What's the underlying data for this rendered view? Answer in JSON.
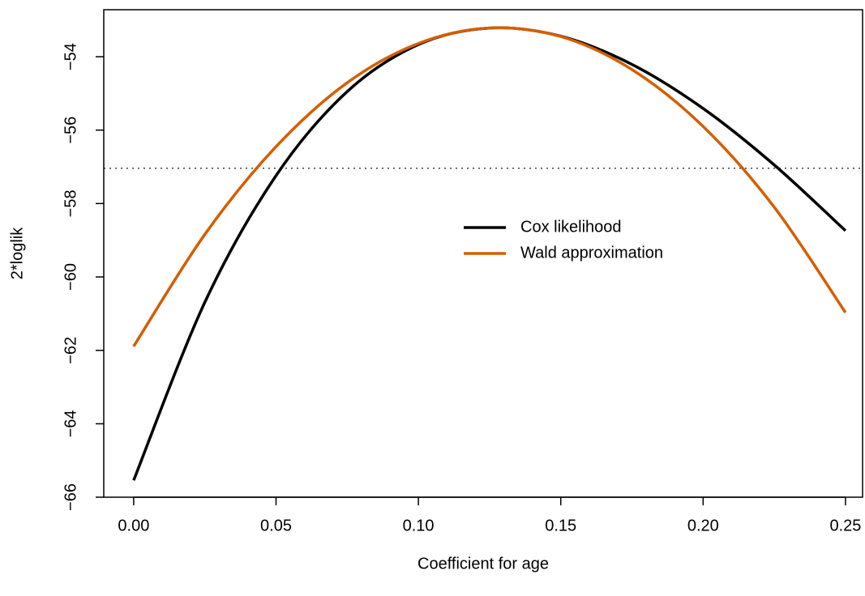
{
  "chart_data": {
    "type": "line",
    "x_label": "Coefficient for age",
    "y_label": "2*loglik",
    "x": [
      0,
      0.025,
      0.05,
      0.075,
      0.1,
      0.125,
      0.15,
      0.175,
      0.2,
      0.225,
      0.25
    ],
    "series": [
      {
        "name": "Cox likelihood",
        "color": "#000000",
        "values": [
          -65.54,
          -60.69,
          -57.24,
          -54.95,
          -53.67,
          -53.22,
          -53.44,
          -54.21,
          -55.41,
          -56.95,
          -58.74
        ]
      },
      {
        "name": "Wald approximation",
        "color": "#d55e00",
        "values": [
          -61.89,
          -58.84,
          -56.45,
          -54.71,
          -53.64,
          -53.22,
          -53.45,
          -54.35,
          -55.9,
          -58.1,
          -60.97
        ]
      }
    ],
    "hline": -57.04,
    "xlim": [
      -0.0105,
      0.256
    ],
    "ylim": [
      -66,
      -52.72
    ],
    "xticks": [
      {
        "value": 0,
        "label": "0.00"
      },
      {
        "value": 0.05,
        "label": "0.05"
      },
      {
        "value": 0.1,
        "label": "0.10"
      },
      {
        "value": 0.15,
        "label": "0.15"
      },
      {
        "value": 0.2,
        "label": "0.20"
      },
      {
        "value": 0.25,
        "label": "0.25"
      }
    ],
    "yticks": [
      {
        "value": -66,
        "label": "−66"
      },
      {
        "value": -64,
        "label": "−64"
      },
      {
        "value": -62,
        "label": "−62"
      },
      {
        "value": -60,
        "label": "−60"
      },
      {
        "value": -58,
        "label": "−58"
      },
      {
        "value": -56,
        "label": "−56"
      },
      {
        "value": -54,
        "label": "−54"
      }
    ],
    "legend": "center"
  }
}
